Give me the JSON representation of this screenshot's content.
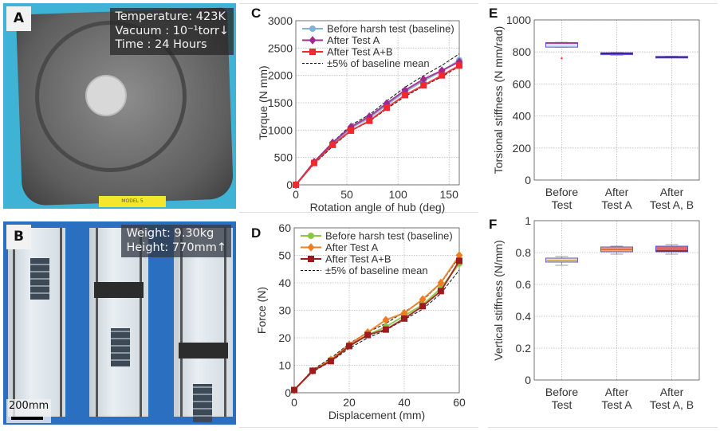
{
  "panel_a": {
    "letter": "A",
    "overlay": [
      "Temperature: 423K",
      "Vacuum : 10⁻¹torr↓",
      "Time : 24 Hours"
    ],
    "label_sticker": "MODEL 5"
  },
  "panel_b": {
    "letter": "B",
    "overlay": [
      "Weight: 9.30kg",
      "Height: 770mm↑"
    ],
    "scale_bar": "200mm"
  },
  "chart_data": [
    {
      "panel": "C",
      "type": "line",
      "xlabel": "Rotation angle of hub (deg)",
      "ylabel": "Torque (N mm)",
      "xlim": [
        0,
        160
      ],
      "ylim": [
        0,
        3000
      ],
      "xticks": [
        0,
        50,
        100,
        150
      ],
      "yticks": [
        0,
        500,
        1000,
        1500,
        2000,
        2500,
        3000
      ],
      "grid": true,
      "legend_position": "top-left",
      "x": [
        0,
        18,
        36,
        54,
        72,
        89,
        107,
        125,
        143,
        160
      ],
      "series": [
        {
          "name": "Before harsh test (baseline)",
          "marker": "circle",
          "color": "#7fb4d4",
          "values": [
            0,
            400,
            740,
            1040,
            1220,
            1460,
            1700,
            1900,
            2080,
            2280
          ]
        },
        {
          "name": "After Test A",
          "marker": "diamond",
          "color": "#a0288f",
          "values": [
            0,
            420,
            770,
            1060,
            1250,
            1490,
            1730,
            1930,
            2090,
            2250
          ]
        },
        {
          "name": "After Test A+B",
          "marker": "square",
          "color": "#ee2a2e",
          "values": [
            0,
            400,
            730,
            990,
            1170,
            1410,
            1640,
            1820,
            2000,
            2180
          ]
        }
      ],
      "band": {
        "name": "±5% of baseline mean",
        "fraction": 0.05,
        "color": "#111111"
      }
    },
    {
      "panel": "D",
      "type": "line",
      "xlabel": "Displacement (mm)",
      "ylabel": "Force (N)",
      "xlim": [
        0,
        60
      ],
      "ylim": [
        0,
        60
      ],
      "xticks": [
        0,
        20,
        40,
        60
      ],
      "yticks": [
        0,
        10,
        20,
        30,
        40,
        50,
        60
      ],
      "grid": true,
      "legend_position": "top-left",
      "x": [
        0,
        6.7,
        13.3,
        20,
        26.7,
        33.3,
        40,
        46.7,
        53.3,
        60
      ],
      "series": [
        {
          "name": "Before harsh test (baseline)",
          "marker": "circle",
          "color": "#8cc63f",
          "values": [
            1,
            8,
            12,
            17,
            21,
            24,
            28,
            32,
            38,
            47
          ]
        },
        {
          "name": "After Test A",
          "marker": "diamond",
          "color": "#f07d22",
          "values": [
            1,
            8,
            12,
            17.5,
            22,
            26.5,
            29,
            34,
            40,
            50
          ]
        },
        {
          "name": "After Test A+B",
          "marker": "square",
          "color": "#9b1b1e",
          "values": [
            1,
            8,
            11.5,
            17,
            21,
            23,
            27,
            31.5,
            37,
            48
          ]
        }
      ],
      "band": {
        "name": "±5% of baseline mean",
        "fraction": 0.05,
        "color": "#111111"
      }
    },
    {
      "panel": "E",
      "type": "box",
      "ylabel": "Torsional stiffness (N mm/rad)",
      "ylim": [
        0,
        1000
      ],
      "yticks": [
        0,
        200,
        400,
        600,
        800,
        1000
      ],
      "grid": true,
      "categories": [
        [
          "Before",
          "Test"
        ],
        [
          "After",
          "Test A"
        ],
        [
          "After",
          "Test A, B"
        ]
      ],
      "boxes": [
        {
          "whisker_low": 830,
          "q1": 830,
          "median": 855,
          "q3": 858,
          "whisker_high": 860,
          "outliers": [
            760
          ],
          "fill": "#cfe4ef",
          "median_color": "#9a2aa0"
        },
        {
          "whisker_low": 780,
          "q1": 783,
          "median": 790,
          "q3": 795,
          "whisker_high": 797,
          "outliers": [],
          "fill": "#9a2aa0",
          "median_color": "#5a1060"
        },
        {
          "whisker_low": 764,
          "q1": 765,
          "median": 768,
          "q3": 772,
          "whisker_high": 773,
          "outliers": [],
          "fill": "#9a2aa0",
          "median_color": "#5a1060"
        }
      ]
    },
    {
      "panel": "F",
      "type": "box",
      "ylabel": "Vertical stiffness (N/mm)",
      "ylim": [
        0,
        1
      ],
      "yticks": [
        0,
        0.2,
        0.4,
        0.6,
        0.8,
        1
      ],
      "grid": true,
      "categories": [
        [
          "Before",
          "Test"
        ],
        [
          "After",
          "Test A"
        ],
        [
          "After",
          "Test A, B"
        ]
      ],
      "boxes": [
        {
          "whisker_low": 0.72,
          "q1": 0.74,
          "median": 0.75,
          "q3": 0.765,
          "whisker_high": 0.775,
          "outliers": [],
          "fill": "#f2e2a0",
          "median_color": "#e39a3a"
        },
        {
          "whisker_low": 0.79,
          "q1": 0.805,
          "median": 0.82,
          "q3": 0.835,
          "whisker_high": 0.84,
          "outliers": [],
          "fill": "#f5a878",
          "median_color": "#e05a2a"
        },
        {
          "whisker_low": 0.79,
          "q1": 0.805,
          "median": 0.81,
          "q3": 0.84,
          "whisker_high": 0.85,
          "outliers": [],
          "fill": "#d96a6e",
          "median_color": "#8a1a1a"
        }
      ]
    }
  ]
}
